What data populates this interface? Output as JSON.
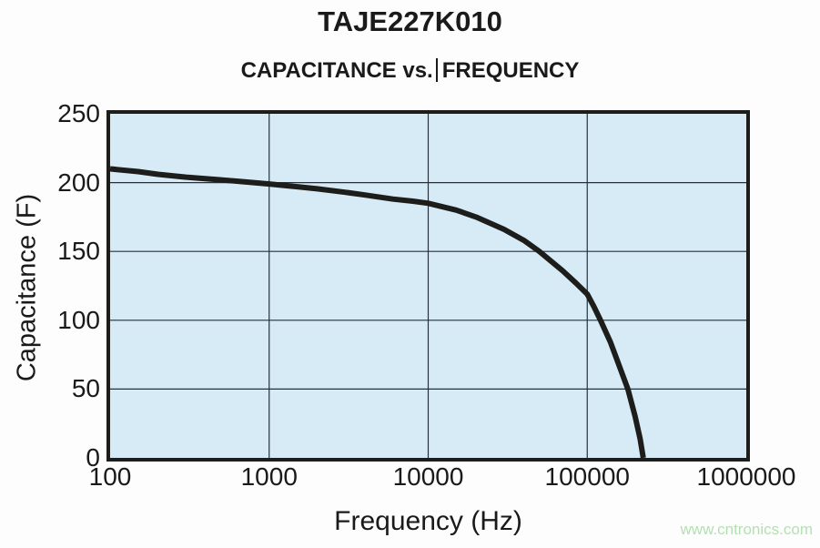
{
  "title": "TAJE227K010",
  "subtitle": {
    "left": "CAPACITANCE vs.",
    "right": "FREQUENCY",
    "full": "CAPACITANCE vs. FREQUENCY"
  },
  "watermark": "www.cntronics.com",
  "colors": {
    "plot_bg": "#d7ebf6",
    "curve": "#1d1d1b",
    "grid": "#27313c",
    "border": "#1d1d1b",
    "text": "#1a1a1a",
    "watermark": "#b5dfb2"
  },
  "chart_data": {
    "type": "line",
    "title": "TAJE227K010",
    "subtitle": "CAPACITANCE vs. FREQUENCY",
    "xlabel": "Frequency (Hz)",
    "ylabel": "Capacitance (F)",
    "x_scale": "log",
    "xlim": [
      100,
      1000000
    ],
    "ylim": [
      0,
      250
    ],
    "x_ticks": [
      100,
      1000,
      10000,
      100000,
      1000000
    ],
    "x_tick_labels": [
      "100",
      "1000",
      "10000",
      "100000",
      "1000000"
    ],
    "y_ticks": [
      0,
      50,
      100,
      150,
      200,
      250
    ],
    "y_tick_labels": [
      "0",
      "50",
      "100",
      "150",
      "200",
      "250"
    ],
    "grid": true,
    "legend": "none",
    "series": [
      {
        "name": "capacitance-vs-frequency",
        "points": [
          [
            100,
            210
          ],
          [
            150,
            208
          ],
          [
            200,
            206
          ],
          [
            300,
            204
          ],
          [
            500,
            202
          ],
          [
            700,
            200.5
          ],
          [
            1000,
            199
          ],
          [
            1500,
            197
          ],
          [
            2000,
            195.5
          ],
          [
            3000,
            193
          ],
          [
            4000,
            191
          ],
          [
            6000,
            188
          ],
          [
            8000,
            186.5
          ],
          [
            10000,
            185
          ],
          [
            15000,
            180
          ],
          [
            20000,
            175
          ],
          [
            30000,
            166
          ],
          [
            40000,
            158
          ],
          [
            50000,
            150
          ],
          [
            70000,
            136
          ],
          [
            85000,
            127
          ],
          [
            100000,
            119
          ],
          [
            110000,
            110
          ],
          [
            120000,
            101
          ],
          [
            140000,
            84
          ],
          [
            160000,
            66
          ],
          [
            180000,
            50
          ],
          [
            200000,
            30
          ],
          [
            215000,
            14
          ],
          [
            225000,
            0
          ]
        ]
      }
    ]
  }
}
